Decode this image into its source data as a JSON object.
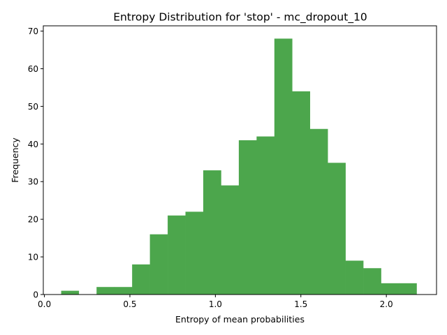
{
  "chart_data": {
    "type": "bar",
    "title": "Entropy Distribution for 'stop' - mc_dropout_10",
    "xlabel": "Entropy of mean probabilities",
    "ylabel": "Frequency",
    "xlim": [
      -0.0065,
      2.2935
    ],
    "ylim": [
      0,
      71.4
    ],
    "xticks": [
      0.0,
      0.5,
      1.0,
      1.5,
      2.0
    ],
    "xtick_labels": [
      "0.0",
      "0.5",
      "1.0",
      "1.5",
      "2.0"
    ],
    "yticks": [
      0,
      10,
      20,
      30,
      40,
      50,
      60,
      70
    ],
    "ytick_labels": [
      "0",
      "10",
      "20",
      "30",
      "40",
      "50",
      "60",
      "70"
    ],
    "bin_edges": [
      0.098,
      0.201,
      0.305,
      0.409,
      0.513,
      0.617,
      0.721,
      0.825,
      0.929,
      1.033,
      1.137,
      1.241,
      1.345,
      1.449,
      1.553,
      1.657,
      1.761,
      1.865,
      1.969,
      2.073,
      2.177
    ],
    "values": [
      1,
      0,
      2,
      2,
      8,
      16,
      21,
      22,
      33,
      29,
      41,
      42,
      68,
      54,
      44,
      35,
      9,
      7,
      3,
      3
    ],
    "bar_color": "#4ca64c",
    "grid": false,
    "legend": "none"
  }
}
